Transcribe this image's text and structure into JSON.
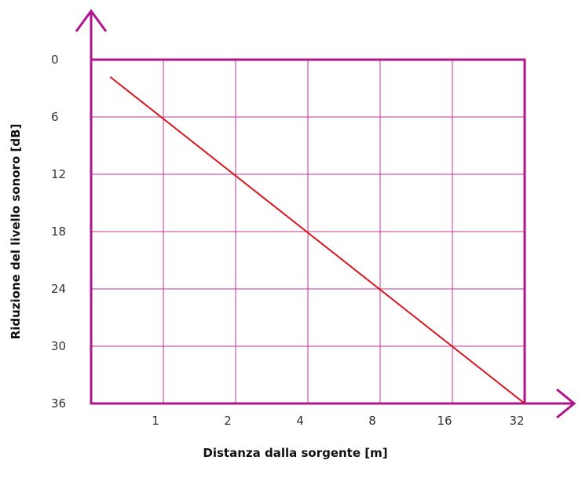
{
  "chart_data": {
    "type": "line",
    "title": "",
    "xlabel": "Distanza dalla sorgente [m]",
    "ylabel": "Riduzione del livello sonoro [dB]",
    "x_scale": "log2",
    "y_inverted": true,
    "x_ticks": [
      "1",
      "2",
      "4",
      "8",
      "16",
      "32"
    ],
    "y_ticks": [
      "0",
      "6",
      "12",
      "18",
      "24",
      "30",
      "36"
    ],
    "xlim": [
      0.5,
      32
    ],
    "ylim": [
      0,
      36
    ],
    "grid": true,
    "series": [
      {
        "x": [
          0.6,
          32
        ],
        "y": [
          1.8,
          36
        ]
      }
    ],
    "colors": {
      "frame": "#b0168b",
      "grid": "#c0349a",
      "line": "#d8141c"
    }
  }
}
